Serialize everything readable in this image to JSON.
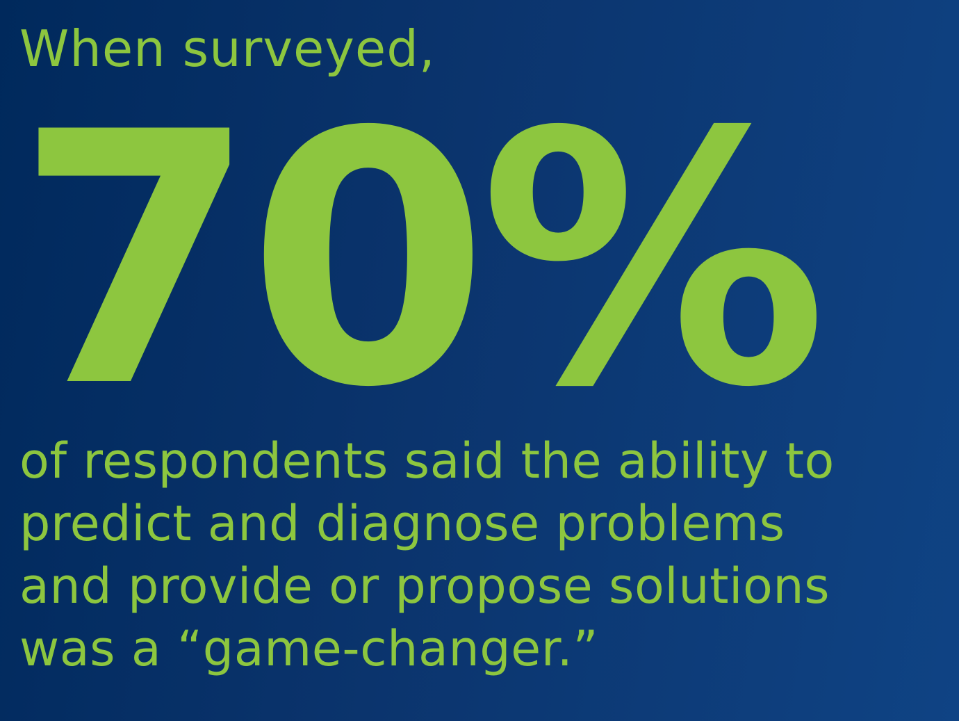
{
  "theme": {
    "text_color": "#8dc63f"
  },
  "intro": "When surveyed,",
  "stat": "70%",
  "body_lines": [
    "of respondents said the ability to",
    "predict and diagnose problems",
    "and provide or propose solutions",
    "was a “game-changer.”"
  ]
}
